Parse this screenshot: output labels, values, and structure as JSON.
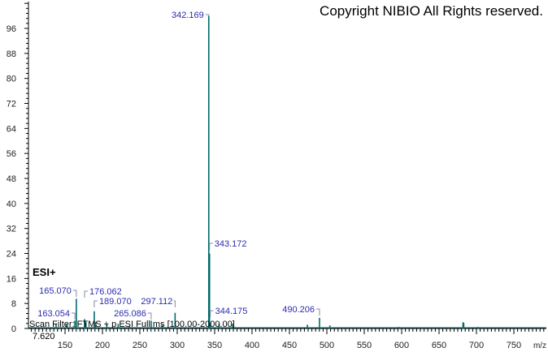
{
  "chart_data": {
    "type": "bar",
    "subtype": "mass-spectrum-stick",
    "copyright": "Copyright NIBIO All Rights reserved.",
    "ionization": "ESI+",
    "scan_filter": "Scan Filter: FTMS + p ESI Full ms [100.00-2000.00]",
    "retention": "7.620",
    "xlabel": "m/z",
    "ylabel": "",
    "xlim": [
      101,
      794
    ],
    "ylim": [
      0,
      104
    ],
    "xticks": [
      150,
      200,
      250,
      300,
      350,
      400,
      450,
      500,
      550,
      600,
      650,
      700,
      750
    ],
    "yticks": [
      0,
      8,
      16,
      24,
      32,
      40,
      48,
      56,
      64,
      72,
      80,
      88,
      96
    ],
    "bar_color": "#006b6b",
    "label_color": "#2b2bb0",
    "grid": false,
    "peaks": [
      {
        "mz": 342.169,
        "intensity": 100,
        "label": "342.169"
      },
      {
        "mz": 343.172,
        "intensity": 24,
        "label": "343.172"
      },
      {
        "mz": 344.175,
        "intensity": 1.5,
        "label": "344.175"
      },
      {
        "mz": 165.07,
        "intensity": 9.5,
        "label": "165.070"
      },
      {
        "mz": 163.054,
        "intensity": 2.5,
        "label": "163.054"
      },
      {
        "mz": 176.062,
        "intensity": 3,
        "label": "176.062"
      },
      {
        "mz": 189.07,
        "intensity": 5.5,
        "label": "189.070"
      },
      {
        "mz": 265.086,
        "intensity": 2.5,
        "label": "265.086"
      },
      {
        "mz": 297.112,
        "intensity": 5,
        "label": "297.112"
      },
      {
        "mz": 490.206,
        "intensity": 3.4,
        "label": "490.206"
      },
      {
        "mz": 138,
        "intensity": 1.5
      },
      {
        "mz": 152,
        "intensity": 1.5
      },
      {
        "mz": 178,
        "intensity": 2
      },
      {
        "mz": 191,
        "intensity": 2
      },
      {
        "mz": 206,
        "intensity": 1.2
      },
      {
        "mz": 221,
        "intensity": 1.5
      },
      {
        "mz": 236,
        "intensity": 0.8
      },
      {
        "mz": 280,
        "intensity": 1.2
      },
      {
        "mz": 356,
        "intensity": 1.5
      },
      {
        "mz": 374,
        "intensity": 1.5
      },
      {
        "mz": 474,
        "intensity": 1.2
      },
      {
        "mz": 504,
        "intensity": 1
      },
      {
        "mz": 596,
        "intensity": 0.5
      },
      {
        "mz": 682,
        "intensity": 2
      },
      {
        "mz": 683,
        "intensity": 1.8
      },
      {
        "mz": 702,
        "intensity": 0.5
      }
    ],
    "label_offsets_note": ""
  }
}
